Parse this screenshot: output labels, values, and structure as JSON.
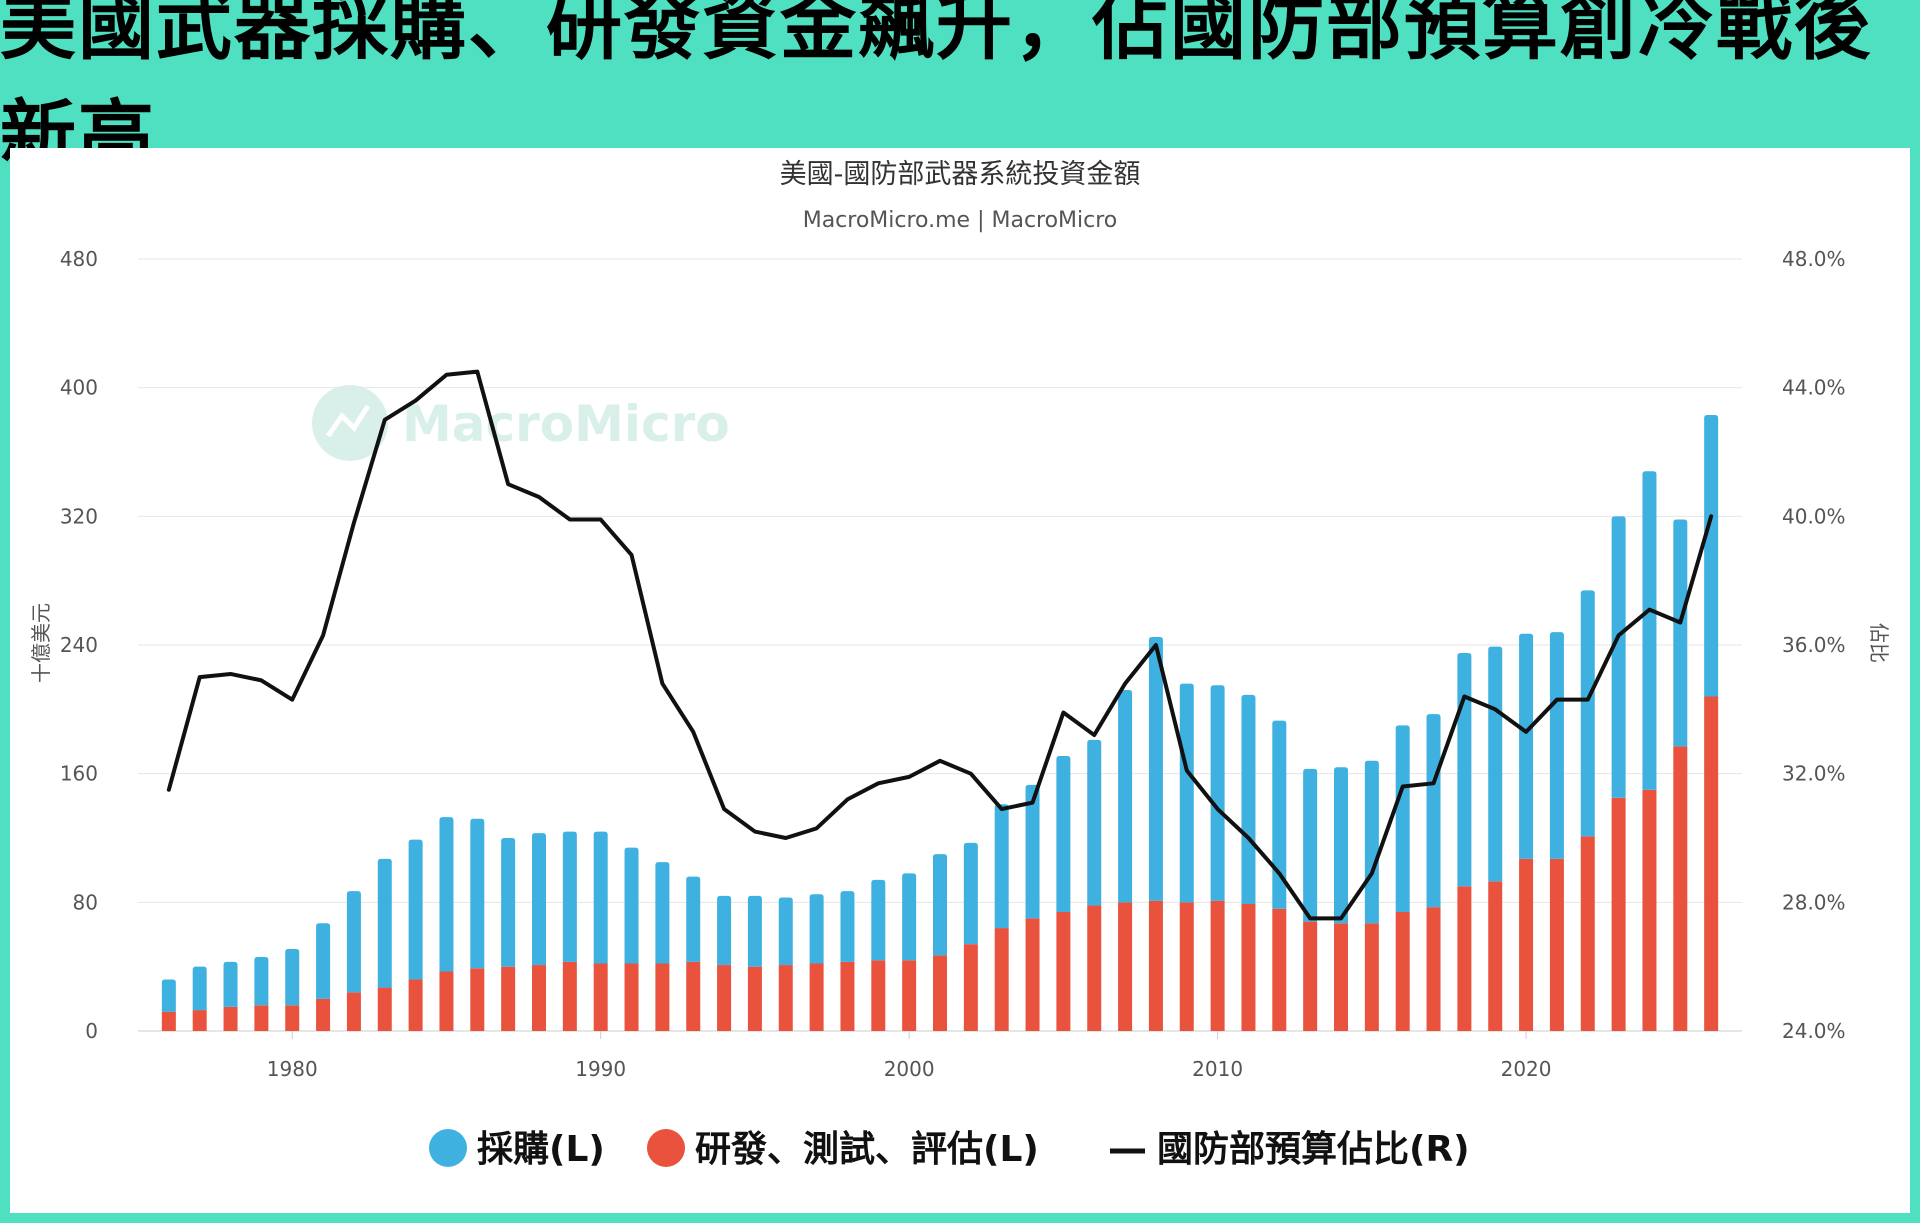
{
  "headline": "美國武器採購、研發資金飆升，佔國防部預算創冷戰後新高",
  "watermark": "MacroMicro",
  "chart_data": {
    "type": "bar",
    "title": "美國-國防部武器系統投資金額",
    "subtitle": "MacroMicro.me | MacroMicro",
    "ylabel_left": "十億美元",
    "ylabel_right": "佔比",
    "ylim_left": [
      0,
      480
    ],
    "ylim_right": [
      24.0,
      48.0
    ],
    "yticks_left": [
      "0",
      "80",
      "160",
      "240",
      "320",
      "400",
      "480"
    ],
    "yticks_right": [
      "24.0%",
      "28.0%",
      "32.0%",
      "36.0%",
      "40.0%",
      "44.0%",
      "48.0%"
    ],
    "xticks": [
      "1980",
      "1990",
      "2000",
      "2010",
      "2020"
    ],
    "xlim": [
      1975,
      2027
    ],
    "grid": true,
    "legend_placement": "bottom",
    "years": [
      1976,
      1977,
      1978,
      1979,
      1980,
      1981,
      1982,
      1983,
      1984,
      1985,
      1986,
      1987,
      1988,
      1989,
      1990,
      1991,
      1992,
      1993,
      1994,
      1995,
      1996,
      1997,
      1998,
      1999,
      2000,
      2001,
      2002,
      2003,
      2004,
      2005,
      2006,
      2007,
      2008,
      2009,
      2010,
      2011,
      2012,
      2013,
      2014,
      2015,
      2016,
      2017,
      2018,
      2019,
      2020,
      2021,
      2022,
      2023,
      2024,
      2025,
      2026
    ],
    "series": [
      {
        "name": "採購(L)",
        "kind": "stacked-bar",
        "axis": "left",
        "color": "#3fb1e0",
        "values": [
          20,
          27,
          28,
          30,
          35,
          47,
          63,
          80,
          87,
          96,
          93,
          80,
          82,
          81,
          82,
          72,
          63,
          53,
          43,
          44,
          42,
          43,
          44,
          50,
          54,
          63,
          63,
          77,
          83,
          97,
          103,
          132,
          164,
          136,
          134,
          130,
          117,
          95,
          97,
          101,
          116,
          120,
          145,
          146,
          140,
          141,
          153,
          175,
          198,
          141,
          175
        ]
      },
      {
        "name": "研發、測試、評估(L)",
        "kind": "stacked-bar",
        "axis": "left",
        "color": "#e9533e",
        "values": [
          12,
          13,
          15,
          16,
          16,
          20,
          24,
          27,
          32,
          37,
          39,
          40,
          41,
          43,
          42,
          42,
          42,
          43,
          41,
          40,
          41,
          42,
          43,
          44,
          44,
          47,
          54,
          64,
          70,
          74,
          78,
          80,
          81,
          80,
          81,
          79,
          76,
          68,
          67,
          67,
          74,
          77,
          90,
          93,
          107,
          107,
          121,
          145,
          150,
          177,
          208
        ]
      },
      {
        "name": "國防部預算佔比(R)",
        "kind": "line",
        "axis": "right",
        "color": "#111111",
        "values": [
          31.5,
          35.0,
          35.1,
          34.9,
          34.3,
          36.3,
          39.8,
          43.0,
          43.6,
          44.4,
          44.5,
          41.0,
          40.6,
          39.9,
          39.9,
          38.8,
          34.8,
          33.3,
          30.9,
          30.2,
          30.0,
          30.3,
          31.2,
          31.7,
          31.9,
          32.4,
          32.0,
          30.9,
          31.1,
          33.9,
          33.2,
          34.8,
          36.0,
          32.1,
          30.9,
          30.0,
          28.9,
          27.5,
          27.5,
          28.9,
          31.6,
          31.7,
          34.4,
          34.0,
          33.3,
          34.3,
          34.3,
          36.3,
          37.1,
          36.7,
          40.0
        ]
      }
    ]
  }
}
